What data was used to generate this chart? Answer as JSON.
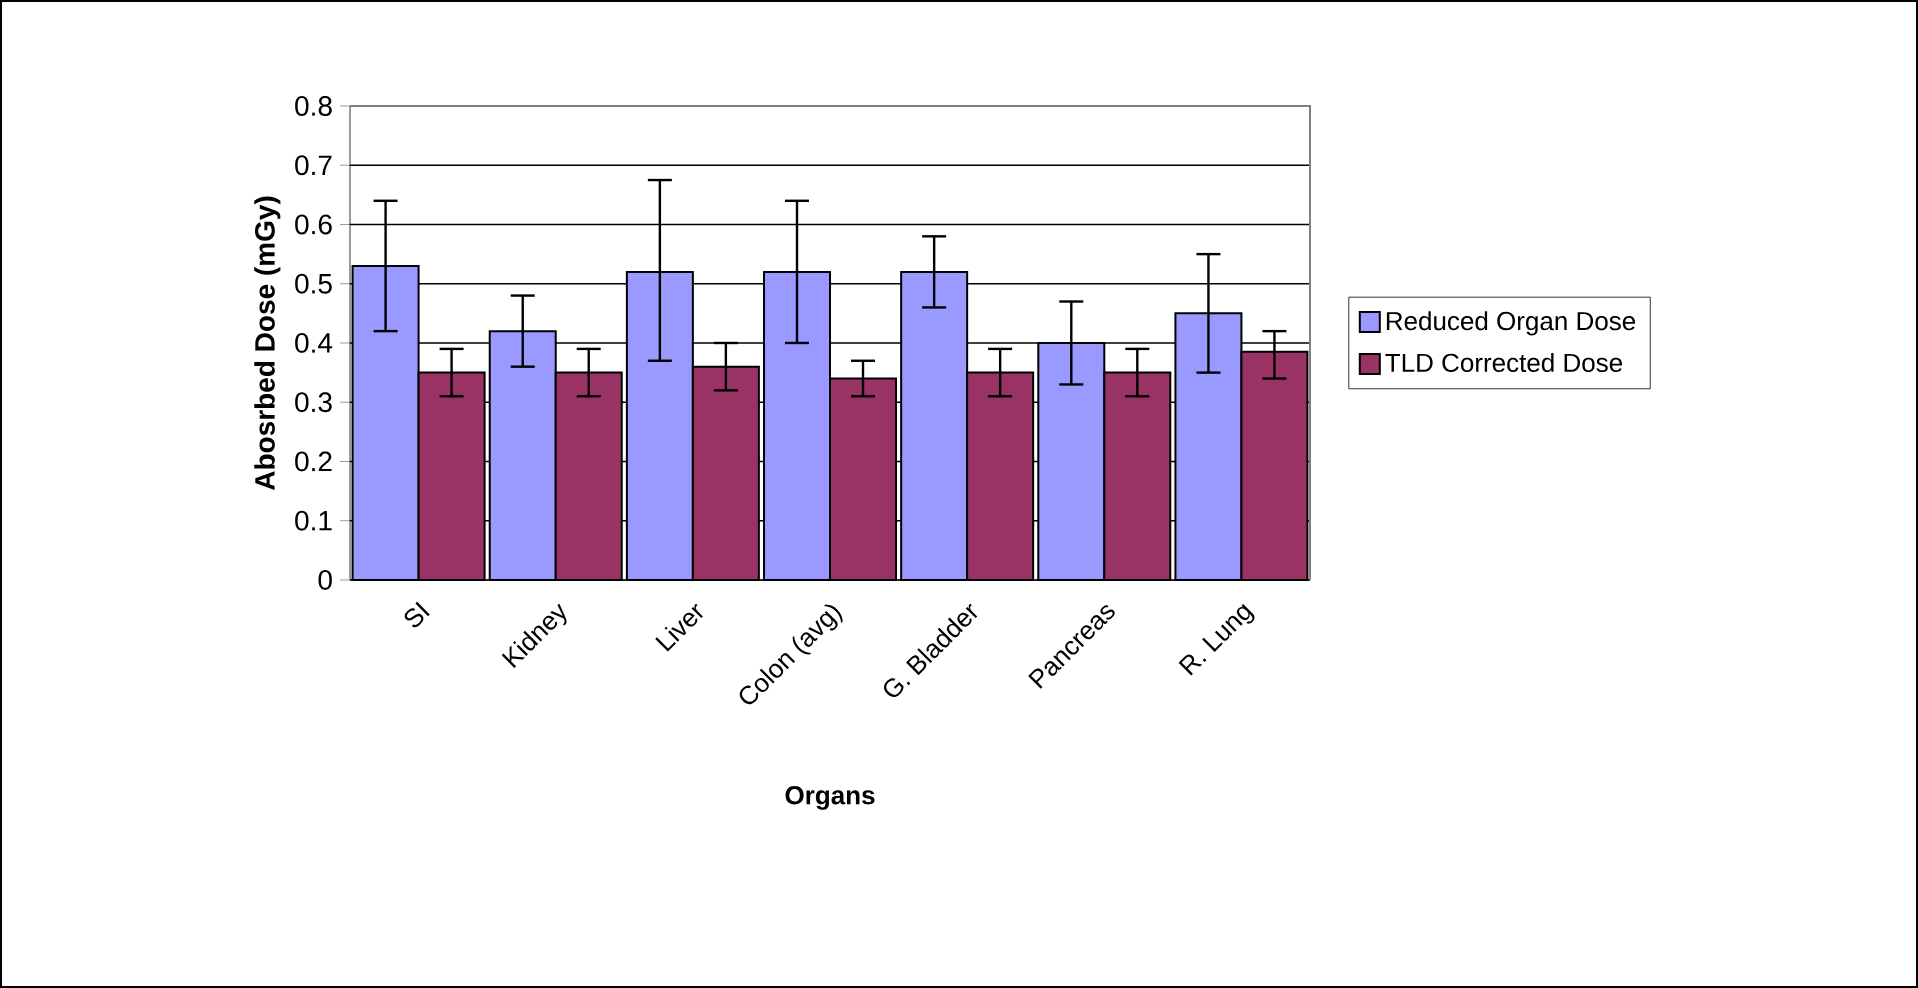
{
  "chart_data": {
    "type": "bar",
    "xlabel": "Organs",
    "ylabel": "Abosrbed Dose (mGy)",
    "categories": [
      "SI",
      "Kidney",
      "Liver",
      "Colon (avg)",
      "G. Bladder",
      "Pancreas",
      "R. Lung"
    ],
    "series": [
      {
        "name": "Reduced Organ Dose",
        "color": "#9999ff",
        "values": [
          0.53,
          0.42,
          0.52,
          0.52,
          0.52,
          0.4,
          0.45
        ],
        "errors": [
          [
            0.42,
            0.64
          ],
          [
            0.36,
            0.48
          ],
          [
            0.37,
            0.675
          ],
          [
            0.4,
            0.64
          ],
          [
            0.46,
            0.58
          ],
          [
            0.33,
            0.47
          ],
          [
            0.35,
            0.55
          ]
        ]
      },
      {
        "name": "TLD Corrected Dose",
        "color": "#993366",
        "values": [
          0.35,
          0.35,
          0.36,
          0.34,
          0.35,
          0.35,
          0.385
        ],
        "errors": [
          [
            0.31,
            0.39
          ],
          [
            0.31,
            0.39
          ],
          [
            0.32,
            0.4
          ],
          [
            0.31,
            0.37
          ],
          [
            0.31,
            0.39
          ],
          [
            0.31,
            0.39
          ],
          [
            0.34,
            0.42
          ]
        ]
      }
    ],
    "ylim": [
      0,
      0.8
    ],
    "yticks": [
      0,
      0.1,
      0.2,
      0.3,
      0.4,
      0.5,
      0.6,
      0.7,
      0.8
    ],
    "grid": "y",
    "legend": "right"
  }
}
